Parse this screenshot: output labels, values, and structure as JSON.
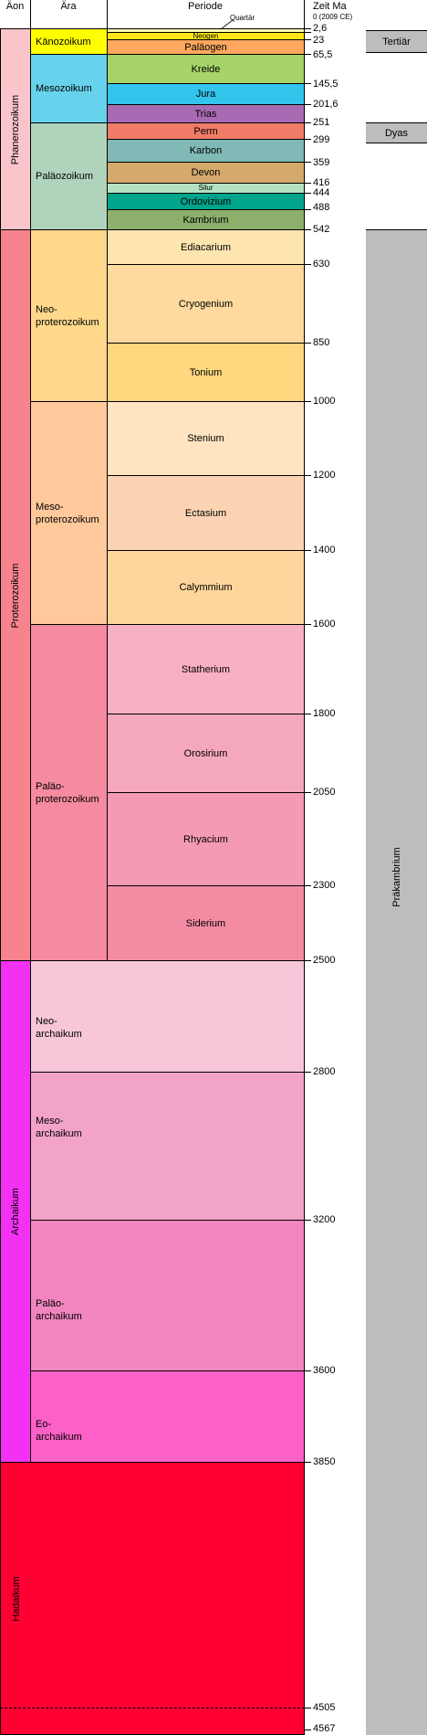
{
  "headers": {
    "aeon": "Äon",
    "aera": "Ära",
    "periode": "Periode",
    "zeit": "Zeit Ma"
  },
  "aeons": {
    "phanerozoikum": "Phanerozoikum",
    "proterozoikum": "Proterozoikum",
    "archaikum": "Archaikum",
    "hadaikum": "Hadaikum"
  },
  "eras": {
    "kaenozoikum": "Känozoikum",
    "mesozoikum": "Mesozoikum",
    "palaeozoikum": "Paläozoikum",
    "neoproterozoikum": "Neo-\nproterozoikum",
    "mesoproterozoikum": "Meso-\nproterozoikum",
    "palaeoproterozoikum": "Paläo-\nproterozoikum",
    "neoarchaikum": "Neo-\narchaikum",
    "mesoarchaikum": "Meso-\narchaikum",
    "palaeoarchaikum": "Paläo-\narchaikum",
    "eoarchaikum": "Eo-\narchaikum"
  },
  "periods": {
    "quartaer": "Quartär",
    "neogen": "Neogen",
    "palaeogen": "Paläogen",
    "kreide": "Kreide",
    "jura": "Jura",
    "trias": "Trias",
    "perm": "Perm",
    "karbon": "Karbon",
    "devon": "Devon",
    "silur": "Silur",
    "ordovizium": "Ordovizium",
    "kambrium": "Kambrium",
    "ediacarium": "Ediacarium",
    "cryogenium": "Cryogenium",
    "tonium": "Tonium",
    "stenium": "Stenium",
    "ectasium": "Ectasium",
    "calymmium": "Calymmium",
    "statherium": "Statherium",
    "orosirium": "Orosirium",
    "rhyacium": "Rhyacium",
    "siderium": "Siderium"
  },
  "times": {
    "t0": "0 (2009 CE)",
    "t2_6": "2,6",
    "t23": "23",
    "t65_5": "65,5",
    "t145_5": "145,5",
    "t201_6": "201,6",
    "t251": "251",
    "t299": "299",
    "t359": "359",
    "t416": "416",
    "t444": "444",
    "t488": "488",
    "t542": "542",
    "t630": "630",
    "t850": "850",
    "t1000": "1000",
    "t1200": "1200",
    "t1400": "1400",
    "t1600": "1600",
    "t1800": "1800",
    "t2050": "2050",
    "t2300": "2300",
    "t2500": "2500",
    "t2800": "2800",
    "t3200": "3200",
    "t3600": "3600",
    "t3850": "3850",
    "t4505": "4505",
    "t4567": "4567"
  },
  "side_labels": {
    "tertiaer": "Tertiär",
    "dyas": "Dyas",
    "praekambrium": "Präkambrium"
  },
  "colors": {
    "phanerozoikum": "#f9c5cb",
    "proterozoikum": "#f7838e",
    "archaikum": "#f331f3",
    "hadaikum": "#ff0033",
    "kaenozoikum": "#ffff00",
    "mesozoikum": "#66d2ec",
    "palaeozoikum": "#b0d4bb",
    "neoproterozoikum": "#ffd88c",
    "mesoproterozoikum": "#ffc99b",
    "palaeoproterozoikum": "#f58aa0",
    "gray": "#bdbdbd"
  }
}
